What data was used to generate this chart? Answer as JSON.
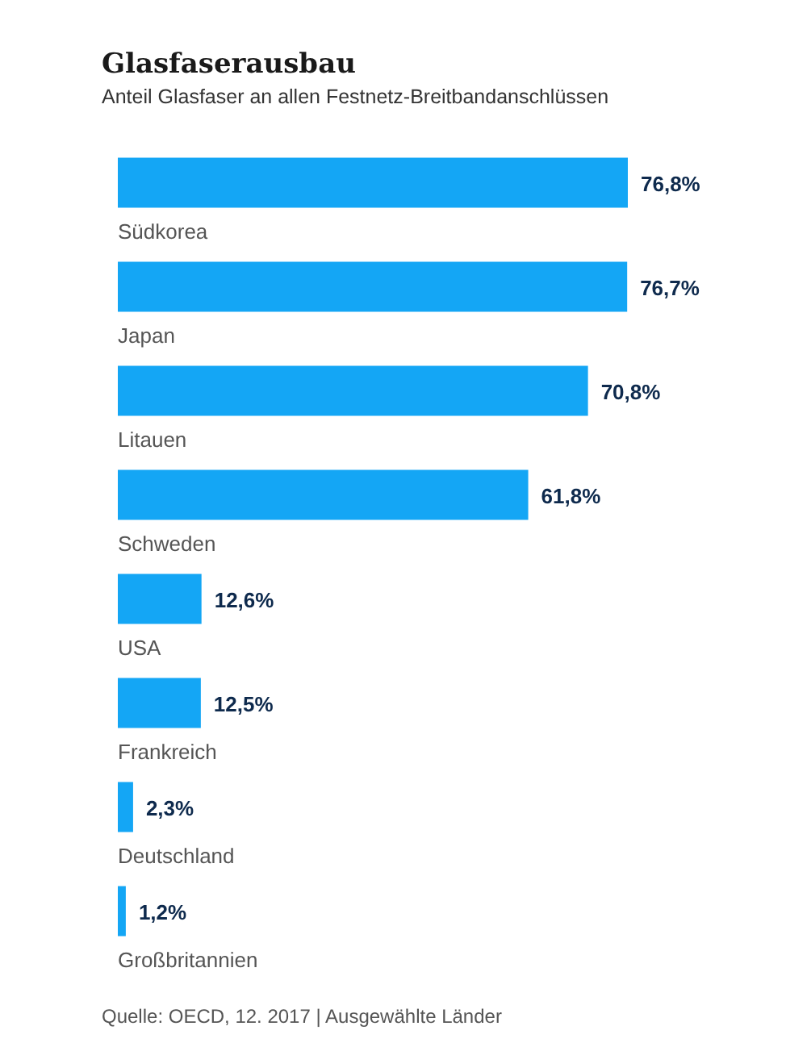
{
  "chart_data": {
    "type": "bar",
    "orientation": "horizontal",
    "title": "Glasfaserausbau",
    "subtitle": "Anteil Glasfaser an allen Festnetz-Breitbandanschlüssen",
    "categories": [
      "Südkorea",
      "Japan",
      "Litauen",
      "Schweden",
      "USA",
      "Frankreich",
      "Deutschland",
      "Großbritannien"
    ],
    "values": [
      76.8,
      76.7,
      70.8,
      61.8,
      12.6,
      12.5,
      2.3,
      1.2
    ],
    "value_labels": [
      "76,8%",
      "76,7%",
      "70,8%",
      "61,8%",
      "12,6%",
      "12,5%",
      "2,3%",
      "1,2%"
    ],
    "color": "#14a6f5",
    "tick_labels": false,
    "annotations": [
      "Quelle: OECD, 12. 2017 | Ausgewählte Länder"
    ]
  }
}
